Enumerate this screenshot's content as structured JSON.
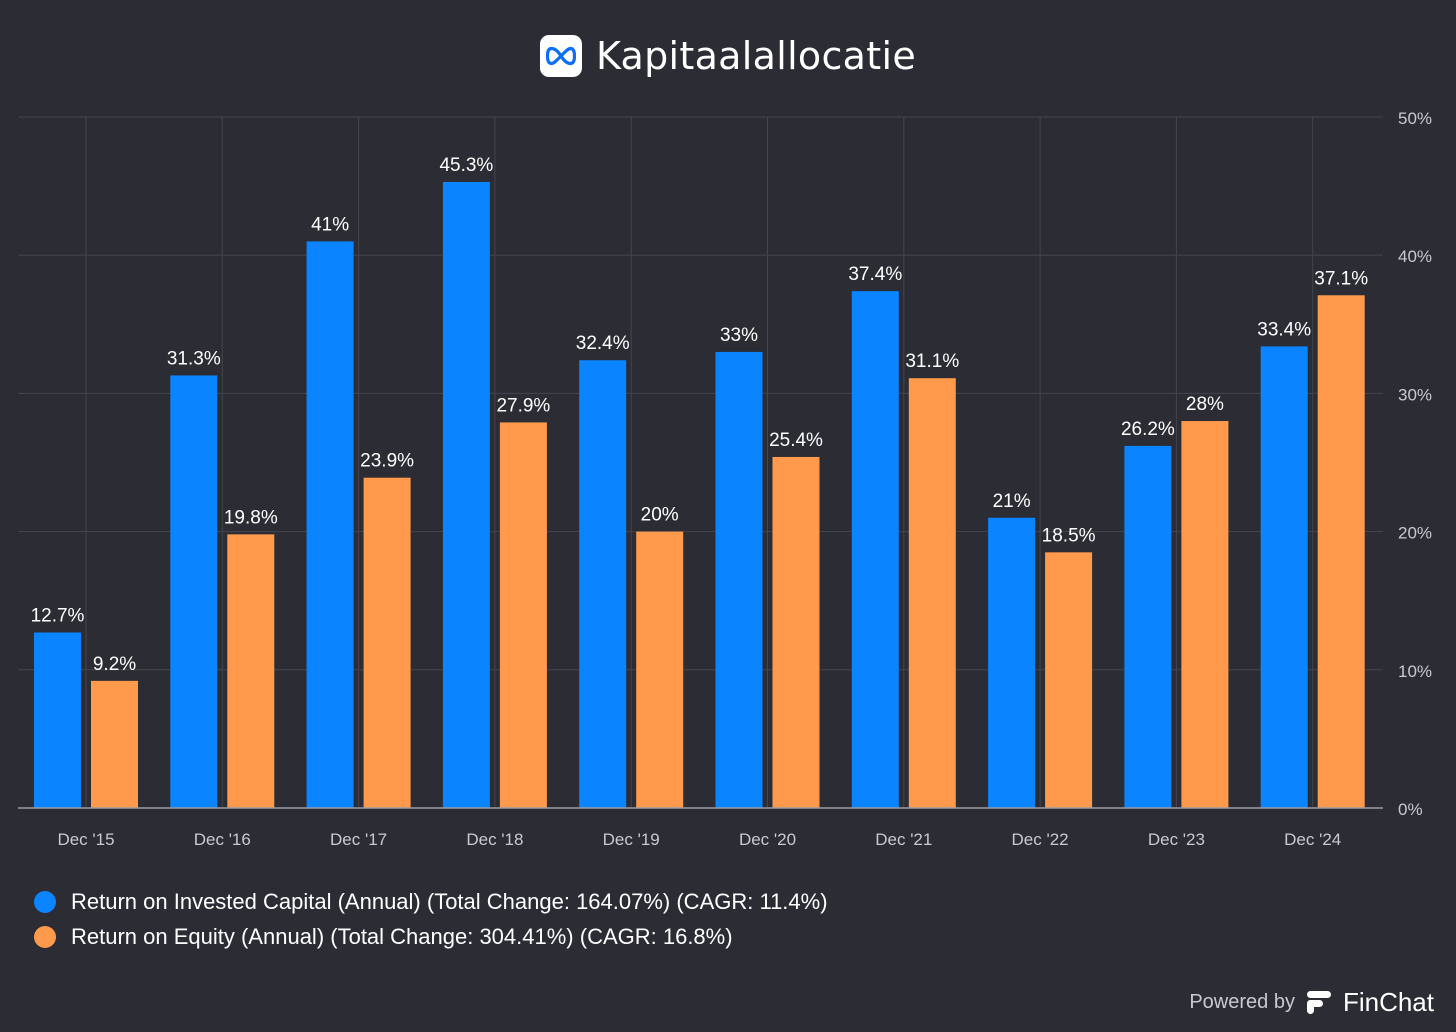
{
  "header": {
    "title": "Kapitaalallocatie",
    "logo_icon": "meta-infinity-icon"
  },
  "chart_data": {
    "type": "bar",
    "title": "Kapitaalallocatie",
    "categories": [
      "Dec '15",
      "Dec '16",
      "Dec '17",
      "Dec '18",
      "Dec '19",
      "Dec '20",
      "Dec '21",
      "Dec '22",
      "Dec '23",
      "Dec '24"
    ],
    "series": [
      {
        "name": "Return on Invested Capital (Annual) (Total Change: 164.07%) (CAGR: 11.4%)",
        "color": "#0b84ff",
        "values": [
          12.7,
          31.3,
          41,
          45.3,
          32.4,
          33,
          37.4,
          21,
          26.2,
          33.4
        ],
        "labels": [
          "12.7%",
          "31.3%",
          "41%",
          "45.3%",
          "32.4%",
          "33%",
          "37.4%",
          "21%",
          "26.2%",
          "33.4%"
        ]
      },
      {
        "name": "Return on Equity (Annual) (Total Change: 304.41%) (CAGR: 16.8%)",
        "color": "#ff9a4d",
        "values": [
          9.2,
          19.8,
          23.9,
          27.9,
          20,
          25.4,
          31.1,
          18.5,
          28,
          37.1
        ],
        "labels": [
          "9.2%",
          "19.8%",
          "23.9%",
          "27.9%",
          "20%",
          "25.4%",
          "31.1%",
          "18.5%",
          "28%",
          "37.1%"
        ]
      }
    ],
    "ylim": [
      0,
      50
    ],
    "yticks": [
      0,
      10,
      20,
      30,
      40,
      50
    ],
    "ytick_labels": [
      "0%",
      "10%",
      "20%",
      "30%",
      "40%",
      "50%"
    ],
    "y_axis_side": "right",
    "grid": true,
    "legend_position": "bottom-left"
  },
  "footer": {
    "powered_by": "Powered by",
    "brand": "FinChat",
    "brand_icon": "finchat-logo-icon"
  }
}
